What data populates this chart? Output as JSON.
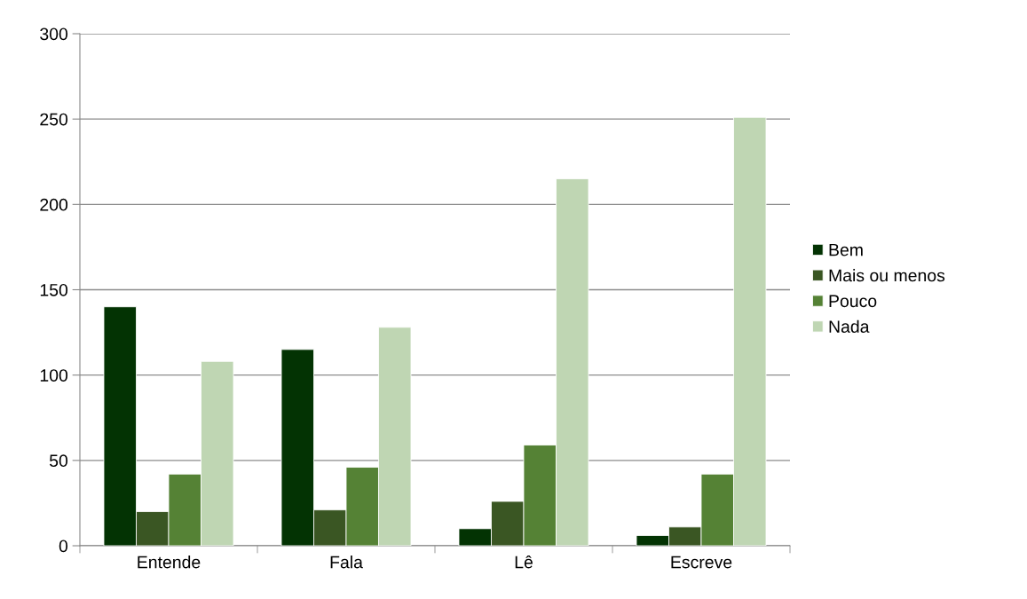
{
  "chart_data": {
    "type": "bar",
    "categories": [
      "Entende",
      "Fala",
      "Lê",
      "Escreve"
    ],
    "series": [
      {
        "name": "Bem",
        "color": "#033303",
        "values": [
          140,
          115,
          10,
          6
        ]
      },
      {
        "name": "Mais ou menos",
        "color": "#3a5623",
        "values": [
          20,
          21,
          26,
          11
        ]
      },
      {
        "name": "Pouco",
        "color": "#558235",
        "values": [
          42,
          46,
          59,
          42
        ]
      },
      {
        "name": "Nada",
        "color": "#bfd6b3",
        "values": [
          108,
          128,
          215,
          251
        ]
      }
    ],
    "ylim": [
      0,
      300
    ],
    "yticks": [
      0,
      50,
      100,
      150,
      200,
      250,
      300
    ],
    "grid": "y",
    "legend": "right"
  }
}
